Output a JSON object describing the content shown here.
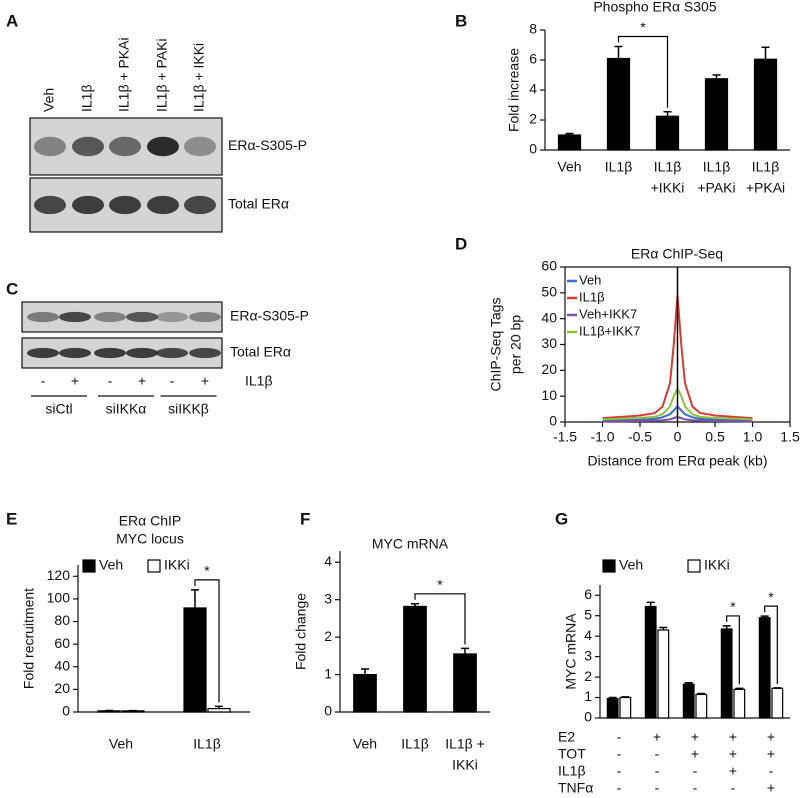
{
  "chart_data": [
    {
      "type": "bar",
      "label": "B",
      "title": "Phospho ERα S305",
      "ylabel": "Fold increase",
      "categories": [
        [
          "Veh"
        ],
        [
          "IL1β"
        ],
        [
          "IL1β",
          "+IKKi"
        ],
        [
          "IL1β",
          "+PAKi"
        ],
        [
          "IL1β",
          "+PKAi"
        ]
      ],
      "values": [
        1,
        6.1,
        2.25,
        4.75,
        6.05
      ],
      "errors": [
        0.1,
        0.8,
        0.3,
        0.25,
        0.8
      ],
      "color": "#000000",
      "ylim": [
        0,
        8
      ],
      "yticks": [
        0,
        2,
        4,
        6,
        8
      ],
      "significance": [
        {
          "label": "*",
          "between": [
            1,
            2
          ]
        }
      ]
    },
    {
      "type": "line",
      "label": "D",
      "title": "ERα ChIP-Seq",
      "ylabel": [
        "ChIP-Seq Tags",
        "per 20 bp"
      ],
      "xlabel": "Distance from ERα peak (kb)",
      "x": [
        -1,
        -0.75,
        -0.5,
        -0.3,
        -0.2,
        -0.1,
        -0.05,
        0,
        0.05,
        0.1,
        0.2,
        0.3,
        0.5,
        0.75,
        1
      ],
      "series": [
        {
          "name": "Veh",
          "color": "#3a6fc4",
          "values": [
            0.5,
            0.7,
            0.9,
            1.2,
            1.8,
            3,
            4.5,
            6,
            4.5,
            3,
            1.8,
            1.2,
            0.9,
            0.7,
            0.5
          ]
        },
        {
          "name": "IL1β",
          "color": "#d83a35",
          "values": [
            1.5,
            2,
            2.5,
            3.5,
            6,
            15,
            30,
            49,
            30,
            15,
            6,
            3.5,
            2.5,
            2,
            1.5
          ]
        },
        {
          "name": "Veh+IKK7",
          "color": "#7a4fa8",
          "values": [
            0.2,
            0.3,
            0.4,
            0.5,
            0.7,
            1,
            1.5,
            2,
            1.5,
            1,
            0.7,
            0.5,
            0.4,
            0.3,
            0.2
          ]
        },
        {
          "name": "IL1β+IKK7",
          "color": "#8cc43c",
          "values": [
            1,
            1.3,
            1.6,
            2,
            3,
            6,
            10,
            13,
            10,
            6,
            3,
            2,
            1.6,
            1.3,
            1
          ]
        }
      ],
      "vline": 0,
      "xlim": [
        -1.5,
        1.5
      ],
      "xticks": [
        -1.5,
        {
          "value": -1,
          "label": "-1.0"
        },
        -0.5,
        0,
        0.5,
        {
          "value": 1,
          "label": "1.0"
        },
        1.5
      ],
      "ylim": [
        0,
        60
      ],
      "yticks": [
        0,
        10,
        20,
        30,
        40,
        50,
        60
      ],
      "legend": "top-left"
    },
    {
      "type": "bar",
      "label": "E",
      "title": "ERα ChIP",
      "subtitle": "MYC locus",
      "ylabel": "Fold recruitment",
      "categories": [
        [
          "Veh"
        ],
        [
          "IL1β"
        ]
      ],
      "series": [
        {
          "name": "Veh",
          "color": "#000000",
          "values": [
            1,
            92
          ],
          "errors": [
            0.3,
            16
          ]
        },
        {
          "name": "IKKi",
          "color": "#ffffff",
          "values": [
            1,
            3
          ],
          "errors": [
            0.2,
            2
          ]
        }
      ],
      "ylim": [
        0,
        130
      ],
      "yticks": [
        0,
        20,
        40,
        60,
        80,
        100,
        120
      ],
      "legend": "top",
      "significance": [
        {
          "label": "*",
          "category": 1
        }
      ]
    },
    {
      "type": "bar",
      "label": "F",
      "title": "MYC mRNA",
      "ylabel": "Fold change",
      "categories": [
        [
          "Veh"
        ],
        [
          "IL1β"
        ],
        [
          "IL1β +",
          "IKKi"
        ]
      ],
      "values": [
        1,
        2.82,
        1.55
      ],
      "errors": [
        0.15,
        0.07,
        0.15
      ],
      "color": "#000000",
      "ylim": [
        0,
        4.3
      ],
      "yticks": [
        0,
        1,
        2,
        3,
        4
      ],
      "significance": [
        {
          "label": "*",
          "between": [
            1,
            2
          ]
        }
      ]
    },
    {
      "type": "bar",
      "label": "G",
      "ylabel": "MYC mRNA",
      "categories": [
        null,
        null,
        null,
        null,
        null
      ],
      "series": [
        {
          "name": "Veh",
          "color": "#000000",
          "values": [
            0.95,
            5.45,
            1.65,
            4.35,
            4.9
          ],
          "errors": [
            0.05,
            0.2,
            0.07,
            0.15,
            0.08
          ]
        },
        {
          "name": "IKKi",
          "color": "#ffffff",
          "values": [
            1,
            4.3,
            1.15,
            1.4,
            1.45
          ],
          "errors": [
            0.03,
            0.12,
            0.05,
            0.05,
            0.02
          ]
        }
      ],
      "ylim": [
        0,
        6.5
      ],
      "yticks": [
        0,
        1,
        2,
        3,
        4,
        5,
        6
      ],
      "legend": "top",
      "significance": [
        {
          "label": "*",
          "category": 3
        },
        {
          "label": "*",
          "category": 4
        }
      ],
      "table": {
        "rows": [
          {
            "label": "E2",
            "values": [
              "-",
              "+",
              "+",
              "+",
              "+"
            ]
          },
          {
            "label": "TOT",
            "values": [
              "-",
              "-",
              "+",
              "+",
              "+"
            ]
          },
          {
            "label": "IL1β",
            "values": [
              "-",
              "-",
              "-",
              "+",
              "-"
            ]
          },
          {
            "label": "TNFα",
            "values": [
              "-",
              "-",
              "-",
              "-",
              "+"
            ]
          }
        ]
      }
    }
  ],
  "blots": [
    {
      "label": "A",
      "lanes": [
        "Veh",
        "IL1β",
        "IL1β + PKAi",
        "IL1β + PAKi",
        "IL1β + IKKi"
      ],
      "rows": [
        "ERα-S305-P",
        "Total ERα"
      ]
    },
    {
      "label": "C",
      "rows": [
        "ERα-S305-P",
        "Total ERα"
      ],
      "treatment": "IL1β",
      "signs": [
        "-",
        "+",
        "-",
        "+",
        "-",
        "+"
      ],
      "groups": [
        "siCtl",
        "siIKKα",
        "siIKKβ"
      ]
    }
  ]
}
